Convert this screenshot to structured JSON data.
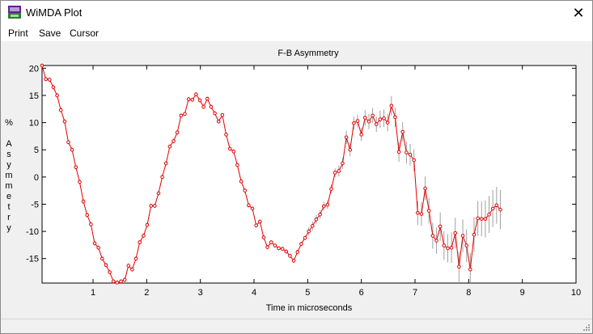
{
  "window": {
    "title": "WiMDA Plot",
    "icon": "wimda-app-icon",
    "close_glyph": "✕"
  },
  "menu": [
    "Print",
    "Save",
    "Cursor"
  ],
  "chart_data": {
    "type": "line",
    "title": "F-B Asymmetry",
    "xlabel": "Time in microseconds",
    "ylabel": "% Asymmetry",
    "xlim": [
      0.05,
      10
    ],
    "ylim": [
      -19.5,
      20.5
    ],
    "xticks": [
      1,
      2,
      3,
      4,
      5,
      6,
      7,
      8,
      9,
      10
    ],
    "yticks": [
      20,
      15,
      10,
      5,
      0,
      -5,
      -10,
      -15
    ],
    "grid": false,
    "series": [
      {
        "color": "#e00000",
        "marker": "circle",
        "error_bar_color": "#a0a0a0",
        "points": [
          [
            0.05,
            20.5,
            0.4
          ],
          [
            0.12,
            18.0,
            0.4
          ],
          [
            0.19,
            17.9,
            0.4
          ],
          [
            0.26,
            16.5,
            0.4
          ],
          [
            0.33,
            15.0,
            0.4
          ],
          [
            0.4,
            12.3,
            0.4
          ],
          [
            0.47,
            10.2,
            0.4
          ],
          [
            0.54,
            6.4,
            0.4
          ],
          [
            0.61,
            5.0,
            0.4
          ],
          [
            0.68,
            1.8,
            0.4
          ],
          [
            0.75,
            -0.9,
            0.4
          ],
          [
            0.82,
            -4.5,
            0.4
          ],
          [
            0.89,
            -7.0,
            0.4
          ],
          [
            0.96,
            -8.7,
            0.4
          ],
          [
            1.03,
            -12.2,
            0.4
          ],
          [
            1.1,
            -13.0,
            0.4
          ],
          [
            1.17,
            -15.0,
            0.4
          ],
          [
            1.24,
            -16.2,
            0.4
          ],
          [
            1.31,
            -17.5,
            0.4
          ],
          [
            1.38,
            -19.2,
            0.4
          ],
          [
            1.45,
            -19.4,
            0.4
          ],
          [
            1.52,
            -19.2,
            0.4
          ],
          [
            1.59,
            -18.9,
            0.4
          ],
          [
            1.66,
            -16.3,
            0.4
          ],
          [
            1.73,
            -17.0,
            0.4
          ],
          [
            1.8,
            -15.0,
            0.4
          ],
          [
            1.87,
            -12.0,
            0.4
          ],
          [
            1.94,
            -10.8,
            0.4
          ],
          [
            2.01,
            -8.8,
            0.4
          ],
          [
            2.08,
            -5.3,
            0.4
          ],
          [
            2.15,
            -5.3,
            0.4
          ],
          [
            2.22,
            -3.0,
            0.4
          ],
          [
            2.29,
            0.0,
            0.4
          ],
          [
            2.36,
            2.5,
            0.4
          ],
          [
            2.43,
            5.6,
            0.4
          ],
          [
            2.5,
            6.6,
            0.4
          ],
          [
            2.57,
            8.2,
            0.4
          ],
          [
            2.64,
            11.3,
            0.4
          ],
          [
            2.71,
            11.6,
            0.4
          ],
          [
            2.78,
            14.3,
            0.4
          ],
          [
            2.85,
            14.2,
            0.4
          ],
          [
            2.92,
            15.2,
            0.4
          ],
          [
            2.99,
            14.1,
            0.4
          ],
          [
            3.06,
            12.9,
            0.4
          ],
          [
            3.13,
            14.4,
            0.4
          ],
          [
            3.2,
            12.9,
            0.4
          ],
          [
            3.27,
            11.7,
            0.4
          ],
          [
            3.34,
            10.2,
            0.4
          ],
          [
            3.41,
            11.4,
            0.4
          ],
          [
            3.48,
            7.8,
            0.4
          ],
          [
            3.55,
            5.2,
            0.4
          ],
          [
            3.62,
            4.7,
            0.4
          ],
          [
            3.69,
            2.2,
            0.4
          ],
          [
            3.76,
            -0.8,
            0.4
          ],
          [
            3.83,
            -2.5,
            0.4
          ],
          [
            3.9,
            -5.2,
            0.4
          ],
          [
            3.97,
            -5.8,
            0.4
          ],
          [
            4.04,
            -8.9,
            0.4
          ],
          [
            4.11,
            -8.2,
            0.4
          ],
          [
            4.18,
            -11.1,
            0.4
          ],
          [
            4.25,
            -12.9,
            0.4
          ],
          [
            4.32,
            -12.0,
            0.4
          ],
          [
            4.39,
            -12.6,
            0.4
          ],
          [
            4.46,
            -13.1,
            0.4
          ],
          [
            4.53,
            -13.2,
            0.4
          ],
          [
            4.6,
            -13.7,
            0.4
          ],
          [
            4.67,
            -14.5,
            0.4
          ],
          [
            4.74,
            -15.4,
            0.4
          ],
          [
            4.81,
            -13.8,
            0.4
          ],
          [
            4.88,
            -12.3,
            0.4
          ],
          [
            4.95,
            -11.2,
            0.4
          ],
          [
            5.02,
            -10.0,
            0.8
          ],
          [
            5.09,
            -9.0,
            0.8
          ],
          [
            5.16,
            -7.8,
            0.8
          ],
          [
            5.23,
            -6.9,
            0.8
          ],
          [
            5.3,
            -5.4,
            0.8
          ],
          [
            5.37,
            -5.1,
            0.8
          ],
          [
            5.44,
            -2.2,
            0.8
          ],
          [
            5.51,
            0.8,
            0.8
          ],
          [
            5.58,
            1.1,
            1.0
          ],
          [
            5.65,
            2.5,
            1.0
          ],
          [
            5.72,
            7.3,
            1.2
          ],
          [
            5.79,
            5.0,
            1.2
          ],
          [
            5.86,
            9.9,
            1.2
          ],
          [
            5.93,
            10.3,
            1.2
          ],
          [
            6.0,
            7.8,
            1.2
          ],
          [
            6.07,
            10.9,
            1.4
          ],
          [
            6.14,
            10.2,
            1.4
          ],
          [
            6.21,
            11.3,
            1.4
          ],
          [
            6.28,
            9.7,
            1.4
          ],
          [
            6.35,
            10.6,
            1.6
          ],
          [
            6.42,
            10.8,
            1.6
          ],
          [
            6.49,
            10.0,
            1.6
          ],
          [
            6.56,
            13.1,
            1.8
          ],
          [
            6.63,
            11.0,
            1.8
          ],
          [
            6.7,
            4.6,
            1.8
          ],
          [
            6.77,
            8.3,
            1.8
          ],
          [
            6.84,
            4.5,
            2.0
          ],
          [
            6.91,
            4.1,
            2.0
          ],
          [
            6.98,
            3.1,
            2.0
          ],
          [
            7.05,
            -6.6,
            2.2
          ],
          [
            7.12,
            -6.8,
            2.2
          ],
          [
            7.19,
            -2.1,
            2.2
          ],
          [
            7.26,
            -6.2,
            2.4
          ],
          [
            7.33,
            -10.8,
            2.4
          ],
          [
            7.4,
            -11.7,
            2.4
          ],
          [
            7.47,
            -9.1,
            2.6
          ],
          [
            7.54,
            -12.6,
            2.6
          ],
          [
            7.61,
            -13.1,
            2.6
          ],
          [
            7.68,
            -13.0,
            2.8
          ],
          [
            7.75,
            -10.3,
            2.8
          ],
          [
            7.82,
            -16.5,
            2.8
          ],
          [
            7.89,
            -10.8,
            3.0
          ],
          [
            7.96,
            -12.6,
            3.0
          ],
          [
            8.03,
            -17.0,
            3.0
          ],
          [
            8.1,
            -10.6,
            3.2
          ],
          [
            8.17,
            -7.6,
            3.2
          ],
          [
            8.24,
            -7.7,
            3.2
          ],
          [
            8.31,
            -7.7,
            3.4
          ],
          [
            8.38,
            -6.9,
            3.4
          ],
          [
            8.45,
            -5.8,
            3.4
          ],
          [
            8.52,
            -5.2,
            3.4
          ],
          [
            8.59,
            -6.0,
            3.6
          ]
        ]
      }
    ]
  }
}
